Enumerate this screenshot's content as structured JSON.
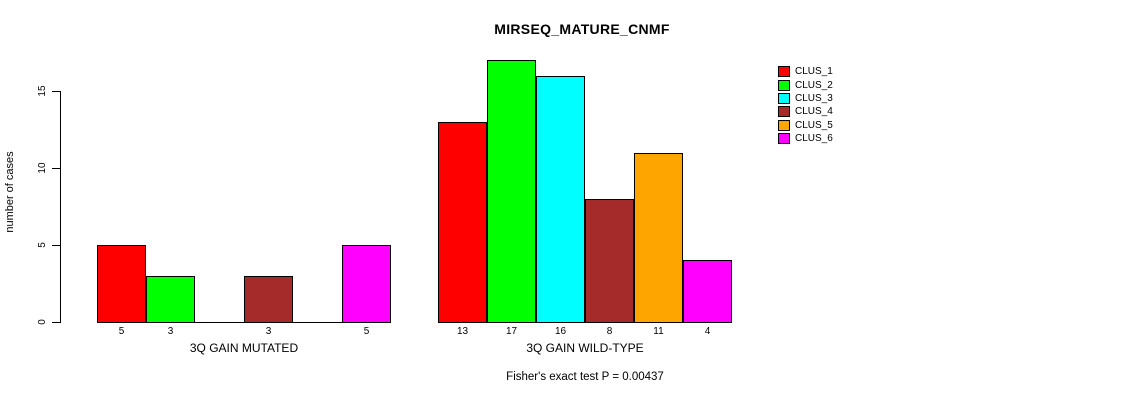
{
  "chart_data": {
    "type": "bar",
    "title": "MIRSEQ_MATURE_CNMF",
    "ylabel": "number of cases",
    "xlabel": "",
    "annotation": "Fisher's exact test P = 0.00437",
    "legend_position": "right",
    "grid": false,
    "yticks": [
      0,
      5,
      10,
      15
    ],
    "ylim": [
      0,
      17.5
    ],
    "categories": [
      "3Q GAIN MUTATED",
      "3Q GAIN WILD-TYPE"
    ],
    "series": [
      {
        "name": "CLUS_1",
        "color": "#FF0000",
        "values": [
          5,
          13
        ]
      },
      {
        "name": "CLUS_2",
        "color": "#00FF00",
        "values": [
          3,
          17
        ]
      },
      {
        "name": "CLUS_3",
        "color": "#00FFFF",
        "values": [
          0,
          16
        ]
      },
      {
        "name": "CLUS_4",
        "color": "#A52A2A",
        "values": [
          3,
          8
        ]
      },
      {
        "name": "CLUS_5",
        "color": "#FFA500",
        "values": [
          0,
          11
        ]
      },
      {
        "name": "CLUS_6",
        "color": "#FF00FF",
        "values": [
          5,
          4
        ]
      }
    ],
    "bar_labels": [
      [
        "5",
        "3",
        "",
        "3",
        "",
        "5"
      ],
      [
        "13",
        "17",
        "16",
        "8",
        "11",
        "4"
      ]
    ]
  }
}
